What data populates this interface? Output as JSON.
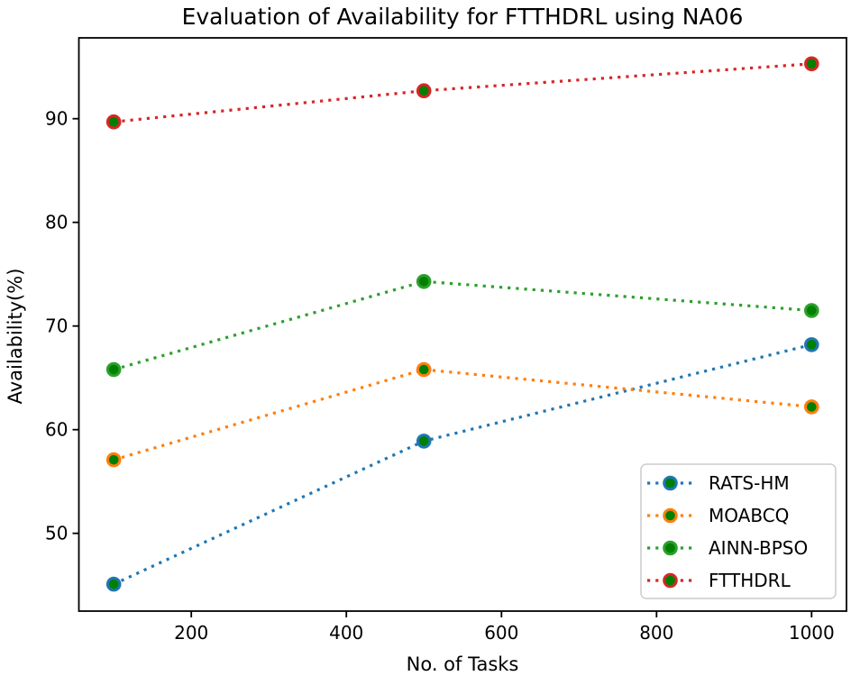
{
  "figure": {
    "title": "Evaluation of Availability for FTTHDRL using NA06"
  },
  "chart_data": {
    "type": "line",
    "title": "Evaluation of Availability for FTTHDRL using NA06",
    "xlabel": "No. of Tasks",
    "ylabel": "Availability(%)",
    "x": [
      100,
      500,
      1000
    ],
    "series": [
      {
        "name": "RATS-HM",
        "color": "#1f77b4",
        "values": [
          45.1,
          58.9,
          68.2
        ]
      },
      {
        "name": "MOABCQ",
        "color": "#ff7f0e",
        "values": [
          57.1,
          65.8,
          62.2
        ]
      },
      {
        "name": "AINN-BPSO",
        "color": "#2ca02c",
        "values": [
          65.8,
          74.3,
          71.5
        ]
      },
      {
        "name": "FTTHDRL",
        "color": "#d62728",
        "values": [
          89.7,
          92.7,
          95.3
        ]
      }
    ],
    "line_style": "dotted",
    "marker": "circle",
    "marker_face_color": "#008000",
    "xlim": [
      55,
      1045
    ],
    "ylim": [
      42.5,
      97.8
    ],
    "x_ticks": [
      200,
      400,
      600,
      800,
      1000
    ],
    "y_ticks": [
      50,
      60,
      70,
      80,
      90
    ],
    "grid": false,
    "legend_position": "lower right",
    "legend_entries": [
      "RATS-HM",
      "MOABCQ",
      "AINN-BPSO",
      "FTTHDRL"
    ],
    "colors": {
      "spine": "#000000",
      "legend_border": "#cccccc",
      "legend_background": "#ffffff",
      "text": "#000000"
    }
  }
}
